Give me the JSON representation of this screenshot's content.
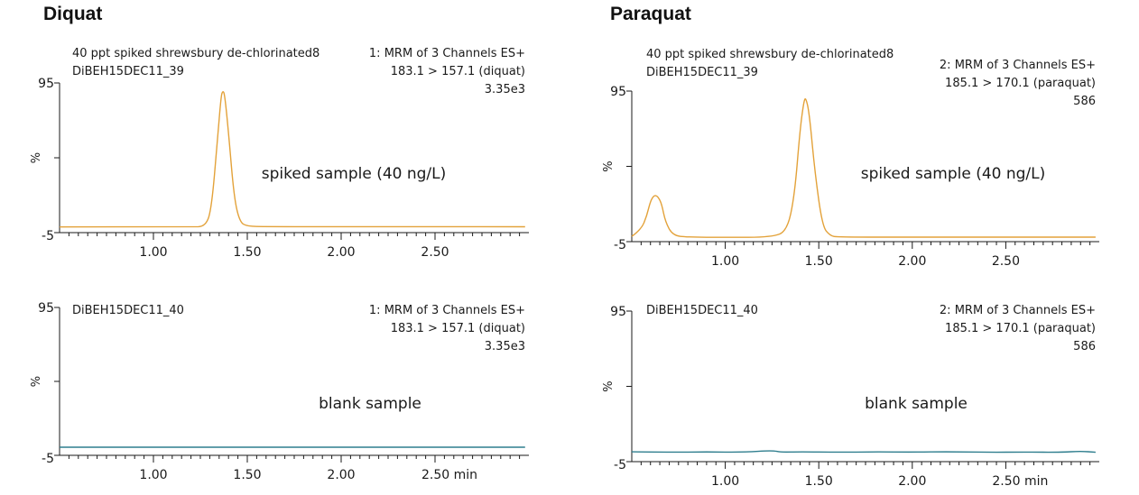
{
  "compounds": [
    {
      "name": "Diquat"
    },
    {
      "name": "Paraquat"
    }
  ],
  "chart_data": [
    {
      "type": "line",
      "compound_index": 0,
      "header_left": [
        "40 ppt spiked shrewsbury de-chlorinated8",
        "DiBEH15DEC11_39"
      ],
      "header_right": [
        "1: MRM of 3 Channels ES+",
        "183.1 > 157.1 (diquat)",
        "3.35e3"
      ],
      "annotation": "spiked sample (40 ng/L)",
      "ylabel": "%",
      "ylim": [
        -5,
        95
      ],
      "y_tick_labels": [
        "95",
        "-5"
      ],
      "xlim": [
        0.5,
        3.0
      ],
      "x_ticks": [
        1.0,
        1.5,
        2.0,
        2.5
      ],
      "x_tick_labels": [
        "1.00",
        "1.50",
        "2.00",
        "2.50"
      ],
      "color": "#e3a23a",
      "series": [
        {
          "x": [
            0.5,
            1.2,
            1.28,
            1.31,
            1.34,
            1.36,
            1.37,
            1.38,
            1.4,
            1.43,
            1.46,
            1.5,
            1.6,
            2.0,
            2.5,
            2.98
          ],
          "y": [
            -1.2,
            -1.2,
            -0.8,
            12,
            55,
            86,
            90,
            87,
            62,
            18,
            2,
            -0.8,
            -1.0,
            -1.1,
            -1.0,
            -1.1
          ]
        }
      ]
    },
    {
      "type": "line",
      "compound_index": 1,
      "header_left": [
        "40 ppt spiked shrewsbury de-chlorinated8",
        "DiBEH15DEC11_39"
      ],
      "header_right": [
        "2: MRM of 3 Channels ES+",
        "185.1 > 170.1 (paraquat)",
        "586"
      ],
      "annotation": "spiked sample (40 ng/L)",
      "ylabel": "%",
      "ylim": [
        -5,
        95
      ],
      "y_tick_labels": [
        "95",
        "-5"
      ],
      "xlim": [
        0.5,
        3.0
      ],
      "x_ticks": [
        1.0,
        1.5,
        2.0,
        2.5
      ],
      "x_tick_labels": [
        "1.00",
        "1.50",
        "2.00",
        "2.50"
      ],
      "color": "#e3a23a",
      "series": [
        {
          "x": [
            0.5,
            0.55,
            0.58,
            0.6,
            0.62,
            0.64,
            0.66,
            0.68,
            0.72,
            0.8,
            1.0,
            1.25,
            1.33,
            1.37,
            1.4,
            1.42,
            1.43,
            1.45,
            1.48,
            1.52,
            1.56,
            1.6,
            2.0,
            2.5,
            2.98
          ],
          "y": [
            -1.5,
            3,
            12,
            22,
            26,
            25,
            20,
            8,
            -1,
            -2,
            -2.2,
            -2,
            2,
            25,
            70,
            88,
            91,
            80,
            40,
            5,
            -1,
            -2,
            -2,
            -2,
            -2
          ]
        }
      ]
    },
    {
      "type": "line",
      "compound_index": 0,
      "header_left": [
        "DiBEH15DEC11_40"
      ],
      "header_right": [
        "1: MRM of 3 Channels ES+",
        "183.1 > 157.1 (diquat)",
        "3.35e3"
      ],
      "annotation": "blank sample",
      "ylabel": "%",
      "ylim": [
        -5,
        95
      ],
      "y_tick_labels": [
        "95",
        "-5"
      ],
      "xlim": [
        0.5,
        3.0
      ],
      "x_ticks": [
        1.0,
        1.5,
        2.0,
        2.5
      ],
      "x_tick_labels": [
        "1.00",
        "1.50",
        "2.00",
        "2.50 min"
      ],
      "color": "#2f7e8e",
      "series": [
        {
          "x": [
            0.5,
            1.0,
            1.5,
            2.0,
            2.5,
            2.98
          ],
          "y": [
            0.5,
            0.5,
            0.5,
            0.5,
            0.5,
            0.5
          ]
        }
      ]
    },
    {
      "type": "line",
      "compound_index": 1,
      "header_left": [
        "DiBEH15DEC11_40"
      ],
      "header_right": [
        "2: MRM of 3 Channels ES+",
        "185.1 > 170.1 (paraquat)",
        "586"
      ],
      "annotation": "blank sample",
      "ylabel": "%",
      "ylim": [
        -5,
        95
      ],
      "y_tick_labels": [
        "95",
        "-5"
      ],
      "xlim": [
        0.5,
        3.0
      ],
      "x_ticks": [
        1.0,
        1.5,
        2.0,
        2.5
      ],
      "x_tick_labels": [
        "1.00",
        "1.50",
        "2.00",
        "2.50 min"
      ],
      "color": "#2f7e8e",
      "series": [
        {
          "x": [
            0.5,
            0.7,
            0.9,
            1.1,
            1.25,
            1.3,
            1.4,
            1.6,
            1.8,
            2.0,
            2.2,
            2.4,
            2.6,
            2.8,
            2.9,
            2.98
          ],
          "y": [
            1.5,
            1.2,
            1.5,
            1.2,
            2.5,
            1.2,
            1.6,
            1.2,
            1.5,
            1.3,
            1.6,
            1.2,
            1.4,
            1.2,
            2.0,
            1.2
          ]
        }
      ]
    }
  ]
}
